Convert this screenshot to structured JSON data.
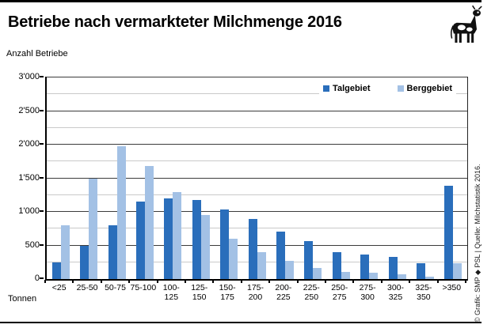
{
  "page": {
    "title": "Betriebe nach vermarkteter Milchmenge 2016",
    "y_axis_title": "Anzahl Betriebe",
    "x_axis_title": "Tonnen",
    "credit": "© Grafik: SMP ◆ PSL | Quelle: Milchstatistik 2016."
  },
  "legend": {
    "talgebiet": "Talgebiet",
    "berggebiet": "Berggebiet"
  },
  "colors": {
    "talgebiet": "#2a6ebb",
    "berggebiet": "#a3c1e5",
    "grid_major": "#3b3b3b",
    "grid_minor": "#c9c9c9"
  },
  "icons": {
    "cow": "cow-clipart"
  },
  "chart_data": {
    "type": "bar",
    "title": "Betriebe nach vermarkteter Milchmenge 2016",
    "xlabel": "Tonnen",
    "ylabel": "Anzahl Betriebe",
    "ylim": [
      0,
      3000
    ],
    "grid": true,
    "legend_position": "top-right-inside",
    "ytick_step_major": 500,
    "ytick_step_minor": 250,
    "ytick_labels": [
      "0",
      "500",
      "1'000",
      "1'500",
      "2'000",
      "2'500",
      "3'000"
    ],
    "categories": [
      "<25",
      "25-50",
      "50-75",
      "75-100",
      "100-\n125",
      "125-\n150",
      "150-\n175",
      "175-\n200",
      "200-\n225",
      "225-\n250",
      "250-\n275",
      "275-\n300",
      "300-\n325",
      "325-\n350",
      ">350"
    ],
    "series": [
      {
        "name": "Talgebiet",
        "color": "#2a6ebb",
        "values": [
          250,
          500,
          800,
          1150,
          1200,
          1180,
          1030,
          890,
          710,
          560,
          400,
          360,
          330,
          240,
          1390
        ]
      },
      {
        "name": "Berggebiet",
        "color": "#a3c1e5",
        "values": [
          800,
          1500,
          1980,
          1680,
          1300,
          950,
          600,
          400,
          270,
          170,
          110,
          90,
          70,
          40,
          230
        ]
      }
    ]
  }
}
